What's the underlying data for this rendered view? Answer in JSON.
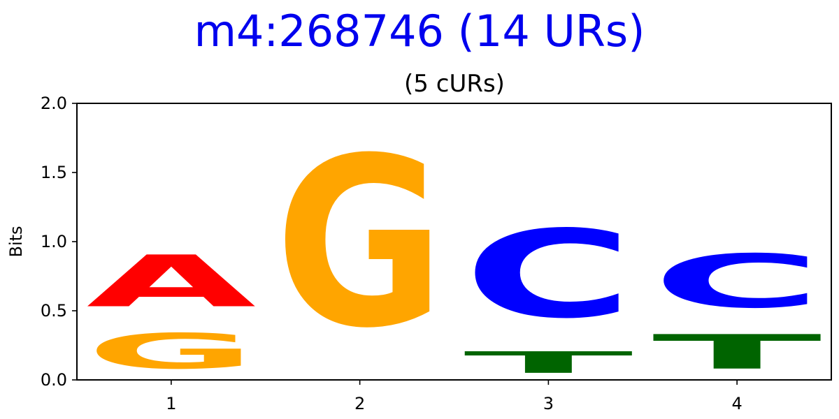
{
  "chart_data": {
    "type": "sequence-logo",
    "title": "m4:268746 (14 URs)",
    "subtitle": "(5 cURs)",
    "xlabel": "",
    "ylabel": "Bits",
    "ylim": [
      0,
      2.0
    ],
    "yticks": [
      "0.0",
      "0.5",
      "1.0",
      "1.5",
      "2.0"
    ],
    "categories": [
      "1",
      "2",
      "3",
      "4"
    ],
    "positions": [
      {
        "x": "1",
        "stack": [
          {
            "letter": "G",
            "bits": 0.41
          },
          {
            "letter": "A",
            "bits": 0.6
          }
        ]
      },
      {
        "x": "2",
        "stack": [
          {
            "letter": "G",
            "bits": 1.97
          }
        ]
      },
      {
        "x": "3",
        "stack": [
          {
            "letter": "T",
            "bits": 0.25
          },
          {
            "letter": "C",
            "bits": 1.02
          }
        ]
      },
      {
        "x": "4",
        "stack": [
          {
            "letter": "T",
            "bits": 0.4
          },
          {
            "letter": "C",
            "bits": 0.62
          }
        ]
      }
    ],
    "colors": {
      "A": "#ff0000",
      "C": "#0000ff",
      "G": "#ffa500",
      "T": "#006400",
      "title": "#0000ee"
    },
    "grid": false,
    "legend": "none"
  }
}
